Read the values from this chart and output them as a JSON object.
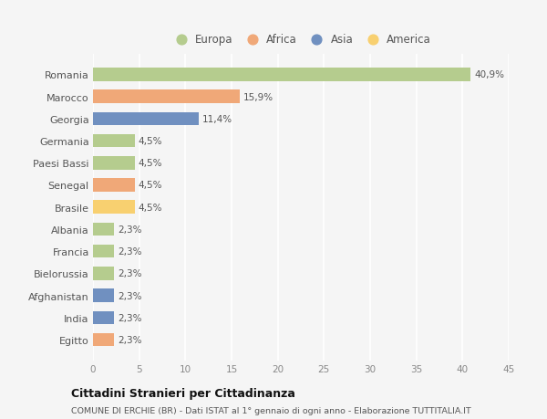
{
  "countries": [
    "Romania",
    "Marocco",
    "Georgia",
    "Germania",
    "Paesi Bassi",
    "Senegal",
    "Brasile",
    "Albania",
    "Francia",
    "Bielorussia",
    "Afghanistan",
    "India",
    "Egitto"
  ],
  "values": [
    40.9,
    15.9,
    11.4,
    4.5,
    4.5,
    4.5,
    4.5,
    2.3,
    2.3,
    2.3,
    2.3,
    2.3,
    2.3
  ],
  "labels": [
    "40,9%",
    "15,9%",
    "11,4%",
    "4,5%",
    "4,5%",
    "4,5%",
    "4,5%",
    "2,3%",
    "2,3%",
    "2,3%",
    "2,3%",
    "2,3%",
    "2,3%"
  ],
  "continents": [
    "Europa",
    "Africa",
    "Asia",
    "Europa",
    "Europa",
    "Africa",
    "America",
    "Europa",
    "Europa",
    "Europa",
    "Asia",
    "Asia",
    "Africa"
  ],
  "continent_colors": {
    "Europa": "#b5cc8e",
    "Africa": "#f0a878",
    "Asia": "#7090c0",
    "America": "#f8d070"
  },
  "legend_order": [
    "Europa",
    "Africa",
    "Asia",
    "America"
  ],
  "title": "Cittadini Stranieri per Cittadinanza",
  "subtitle": "COMUNE DI ERCHIE (BR) - Dati ISTAT al 1° gennaio di ogni anno - Elaborazione TUTTITALIA.IT",
  "xlim": [
    0,
    45
  ],
  "xticks": [
    0,
    5,
    10,
    15,
    20,
    25,
    30,
    35,
    40,
    45
  ],
  "background_color": "#f5f5f5",
  "grid_color": "#ffffff",
  "bar_height": 0.6
}
